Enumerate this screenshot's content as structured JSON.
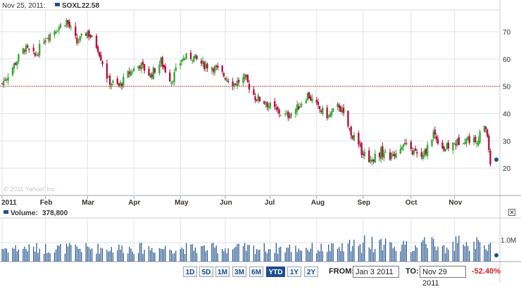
{
  "header": {
    "date": "Nov 25, 2011:",
    "symbol": "SOXL",
    "last_price": "22.58"
  },
  "watermark": "© 2011 Yahoo! Inc.",
  "volume_panel": {
    "label": "Volume:",
    "value": "378,800"
  },
  "controls": {
    "ranges": [
      "1D",
      "5D",
      "1M",
      "3M",
      "6M",
      "YTD",
      "1Y",
      "2Y"
    ],
    "active_range": "YTD",
    "from_label": "FROM:",
    "from_value": "Jan 3 2011",
    "to_label": "TO:",
    "to_value": "Nov 29 2011",
    "change": "-52.40%"
  },
  "colors": {
    "up": "#3aa83a",
    "down": "#b5123c",
    "volume": "#1e4f8c",
    "reference_line": "#d04848",
    "grid": "#dde3ea"
  },
  "chart_data": {
    "type": "candlestick",
    "title": "",
    "x_tick_labels": [
      "2011",
      "Feb",
      "Mar",
      "Apr",
      "May",
      "Jun",
      "Jul",
      "Aug",
      "Sep",
      "Oct",
      "Nov"
    ],
    "y_tick_labels": [
      "70",
      "60",
      "50",
      "40",
      "30",
      "20"
    ],
    "ylim": [
      10,
      78
    ],
    "reference_line": 50,
    "volume_tick_label": "1.0M",
    "closing_points": [
      {
        "date": "2011-01-03",
        "close": 51
      },
      {
        "date": "2011-01-10",
        "close": 57
      },
      {
        "date": "2011-01-18",
        "close": 64
      },
      {
        "date": "2011-01-25",
        "close": 61
      },
      {
        "date": "2011-02-01",
        "close": 68
      },
      {
        "date": "2011-02-08",
        "close": 71
      },
      {
        "date": "2011-02-15",
        "close": 74
      },
      {
        "date": "2011-02-22",
        "close": 66
      },
      {
        "date": "2011-03-01",
        "close": 70
      },
      {
        "date": "2011-03-08",
        "close": 64
      },
      {
        "date": "2011-03-15",
        "close": 52
      },
      {
        "date": "2011-03-22",
        "close": 50
      },
      {
        "date": "2011-03-29",
        "close": 55
      },
      {
        "date": "2011-04-05",
        "close": 58
      },
      {
        "date": "2011-04-12",
        "close": 54
      },
      {
        "date": "2011-04-19",
        "close": 59
      },
      {
        "date": "2011-04-26",
        "close": 52
      },
      {
        "date": "2011-05-03",
        "close": 60
      },
      {
        "date": "2011-05-10",
        "close": 61
      },
      {
        "date": "2011-05-17",
        "close": 58
      },
      {
        "date": "2011-05-24",
        "close": 57
      },
      {
        "date": "2011-05-31",
        "close": 54
      },
      {
        "date": "2011-06-07",
        "close": 51
      },
      {
        "date": "2011-06-14",
        "close": 53
      },
      {
        "date": "2011-06-21",
        "close": 46
      },
      {
        "date": "2011-06-28",
        "close": 44
      },
      {
        "date": "2011-07-05",
        "close": 41
      },
      {
        "date": "2011-07-12",
        "close": 39
      },
      {
        "date": "2011-07-19",
        "close": 42
      },
      {
        "date": "2011-07-26",
        "close": 47
      },
      {
        "date": "2011-08-02",
        "close": 42
      },
      {
        "date": "2011-08-09",
        "close": 39
      },
      {
        "date": "2011-08-16",
        "close": 43
      },
      {
        "date": "2011-08-23",
        "close": 34
      },
      {
        "date": "2011-08-30",
        "close": 27
      },
      {
        "date": "2011-09-06",
        "close": 23
      },
      {
        "date": "2011-09-13",
        "close": 26
      },
      {
        "date": "2011-09-20",
        "close": 24
      },
      {
        "date": "2011-09-27",
        "close": 29
      },
      {
        "date": "2011-10-04",
        "close": 26
      },
      {
        "date": "2011-10-11",
        "close": 24
      },
      {
        "date": "2011-10-18",
        "close": 33
      },
      {
        "date": "2011-10-25",
        "close": 27
      },
      {
        "date": "2011-11-01",
        "close": 29
      },
      {
        "date": "2011-11-08",
        "close": 31
      },
      {
        "date": "2011-11-15",
        "close": 30
      },
      {
        "date": "2011-11-22",
        "close": 35
      },
      {
        "date": "2011-11-25",
        "close": 22.58
      }
    ]
  }
}
